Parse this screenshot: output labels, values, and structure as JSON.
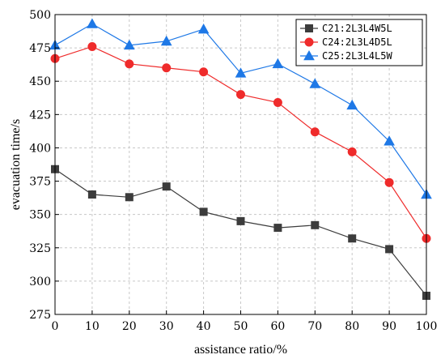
{
  "chart_data": {
    "type": "line",
    "xlabel": "assistance ratio/%",
    "ylabel": "evacuation time/s",
    "xlim": [
      0,
      100
    ],
    "ylim": [
      275,
      500
    ],
    "x_ticks": [
      0,
      10,
      20,
      30,
      40,
      50,
      60,
      70,
      80,
      90,
      100
    ],
    "y_ticks": [
      275,
      300,
      325,
      350,
      375,
      400,
      425,
      450,
      475,
      500
    ],
    "grid": true,
    "legend_position": "top-right",
    "x": [
      0,
      10,
      20,
      30,
      40,
      50,
      60,
      70,
      80,
      90,
      100
    ],
    "series": [
      {
        "name": "C21:2L3L4W5L",
        "color": "#3c3c3c",
        "marker": "square",
        "values": [
          384,
          365,
          363,
          371,
          352,
          345,
          340,
          342,
          332,
          324,
          289
        ]
      },
      {
        "name": "C24:2L3L4D5L",
        "color": "#ef2b2b",
        "marker": "circle",
        "values": [
          467,
          476,
          463,
          460,
          457,
          440,
          434,
          412,
          397,
          374,
          332
        ]
      },
      {
        "name": "C25:2L3L4L5W",
        "color": "#1e78e6",
        "marker": "triangle",
        "values": [
          477,
          493,
          477,
          480,
          489,
          456,
          463,
          448,
          432,
          405,
          365
        ]
      }
    ]
  }
}
